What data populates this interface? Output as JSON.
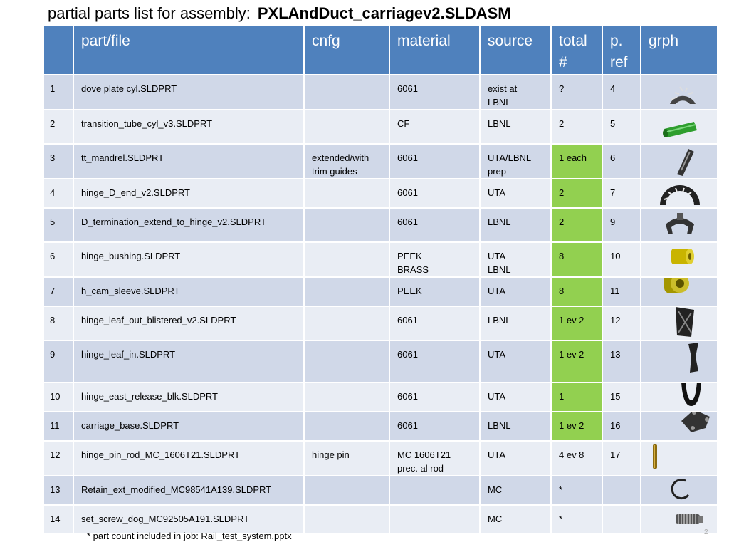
{
  "title": {
    "prefix": "partial parts list for assembly:",
    "assembly": "PXLAndDuct_carriagev2.SLDASM"
  },
  "table": {
    "headers": {
      "num": "",
      "part": "part/file",
      "cnfg": "cnfg",
      "material": "material",
      "source": "source",
      "total_l1": "total",
      "total_l2": "#",
      "pref_l1": "p.",
      "pref_l2": "ref",
      "grph": "grph"
    },
    "rows": [
      {
        "num": "1",
        "part": "dove plate cyl.SLDPRT",
        "cnfg": "",
        "cnfg2": "",
        "material": "6061",
        "material_struck": "",
        "source": "exist at",
        "source2": "LBNL",
        "source_struck": "",
        "total": "?",
        "total_highlight": false,
        "pref": "4",
        "icon": "dove-plate-icon"
      },
      {
        "num": "2",
        "part": "transition_tube_cyl_v3.SLDPRT",
        "cnfg": "",
        "cnfg2": "",
        "material": "CF",
        "material_struck": "",
        "source": "LBNL",
        "source2": "",
        "source_struck": "",
        "total": "2",
        "total_highlight": false,
        "pref": "5",
        "icon": "transition-tube-icon"
      },
      {
        "num": "3",
        "part": "tt_mandrel.SLDPRT",
        "cnfg": "extended/with",
        "cnfg2": "trim guides",
        "material": "6061",
        "material_struck": "",
        "source": "UTA/LBNL",
        "source2": "prep",
        "source_struck": "",
        "total": "1 each",
        "total_highlight": true,
        "pref": "6",
        "icon": "mandrel-icon"
      },
      {
        "num": "4",
        "part": "hinge_D_end_v2.SLDPRT",
        "cnfg": "",
        "cnfg2": "",
        "material": "6061",
        "material_struck": "",
        "source": "UTA",
        "source2": "",
        "source_struck": "",
        "total": "2",
        "total_highlight": true,
        "pref": "7",
        "icon": "hinge-d-end-icon"
      },
      {
        "num": "5",
        "part": "D_termination_extend_to_hinge_v2.SLDPRT",
        "cnfg": "",
        "cnfg2": "",
        "material": "6061",
        "material_struck": "",
        "source": "LBNL",
        "source2": "",
        "source_struck": "",
        "total": "2",
        "total_highlight": true,
        "pref": "9",
        "icon": "d-termination-icon"
      },
      {
        "num": "6",
        "part": "hinge_bushing.SLDPRT",
        "cnfg": "",
        "cnfg2": "",
        "material": "BRASS",
        "material_struck": "PEEK",
        "source": "LBNL",
        "source2": "",
        "source_struck": "UTA",
        "total": "8",
        "total_highlight": true,
        "pref": "10",
        "icon": "hinge-bushing-icon"
      },
      {
        "num": "7",
        "part": "h_cam_sleeve.SLDPRT",
        "cnfg": "",
        "cnfg2": "",
        "material": "PEEK",
        "material_struck": "",
        "source": "UTA",
        "source2": "",
        "source_struck": "",
        "total": "8",
        "total_highlight": true,
        "pref": "11",
        "icon": "cam-sleeve-icon"
      },
      {
        "num": "8",
        "part": "hinge_leaf_out_blistered_v2.SLDPRT",
        "cnfg": "",
        "cnfg2": "",
        "material": "6061",
        "material_struck": "",
        "source": "LBNL",
        "source2": "",
        "source_struck": "",
        "total": "1  ev 2",
        "total_highlight": true,
        "pref": "12",
        "icon": "hinge-leaf-out-icon"
      },
      {
        "num": "9",
        "part": "hinge_leaf_in.SLDPRT",
        "cnfg": "",
        "cnfg2": "",
        "material": "6061",
        "material_struck": "",
        "source": "UTA",
        "source2": "",
        "source_struck": "",
        "total": "1 ev 2",
        "total_highlight": true,
        "pref": "13",
        "icon": "hinge-leaf-in-icon"
      },
      {
        "num": "10",
        "part": "hinge_east_release_blk.SLDPRT",
        "cnfg": "",
        "cnfg2": "",
        "material": "6061",
        "material_struck": "",
        "source": "UTA",
        "source2": "",
        "source_struck": "",
        "total": "1",
        "total_highlight": true,
        "pref": "15",
        "icon": "release-block-icon"
      },
      {
        "num": "11",
        "part": "carriage_base.SLDPRT",
        "cnfg": "",
        "cnfg2": "",
        "material": "6061",
        "material_struck": "",
        "source": "LBNL",
        "source2": "",
        "source_struck": "",
        "total": "1 ev 2",
        "total_highlight": true,
        "pref": "16",
        "icon": "carriage-base-icon"
      },
      {
        "num": "12",
        "part": "hinge_pin_rod_MC_1606T21.SLDPRT",
        "cnfg": "hinge pin",
        "cnfg2": "",
        "material": "MC 1606T21",
        "material2": "prec. al rod",
        "material_struck": "",
        "source": "UTA",
        "source2": "",
        "source_struck": "",
        "total": "4 ev 8",
        "total_highlight": false,
        "pref": "17",
        "icon": "pin-rod-icon"
      },
      {
        "num": "13",
        "part": "Retain_ext_modified_MC98541A139.SLDPRT",
        "cnfg": "",
        "cnfg2": "",
        "material": "",
        "material_struck": "",
        "source": "MC",
        "source2": "",
        "source_struck": "",
        "total": "*",
        "total_highlight": false,
        "pref": "",
        "icon": "retaining-ring-icon"
      },
      {
        "num": "14",
        "part": "set_screw_dog_MC92505A191.SLDPRT",
        "cnfg": "",
        "cnfg2": "",
        "material": "",
        "material_struck": "",
        "source": "MC",
        "source2": "",
        "source_struck": "",
        "total": "*",
        "total_highlight": false,
        "pref": "",
        "icon": "set-screw-icon"
      }
    ]
  },
  "footnote": "*  part count included in job: Rail_test_system.pptx",
  "page_number": "2",
  "colors": {
    "header": "#4f81bd",
    "row_odd": "#d0d8e8",
    "row_even": "#e9edf4",
    "highlight": "#92d050"
  }
}
